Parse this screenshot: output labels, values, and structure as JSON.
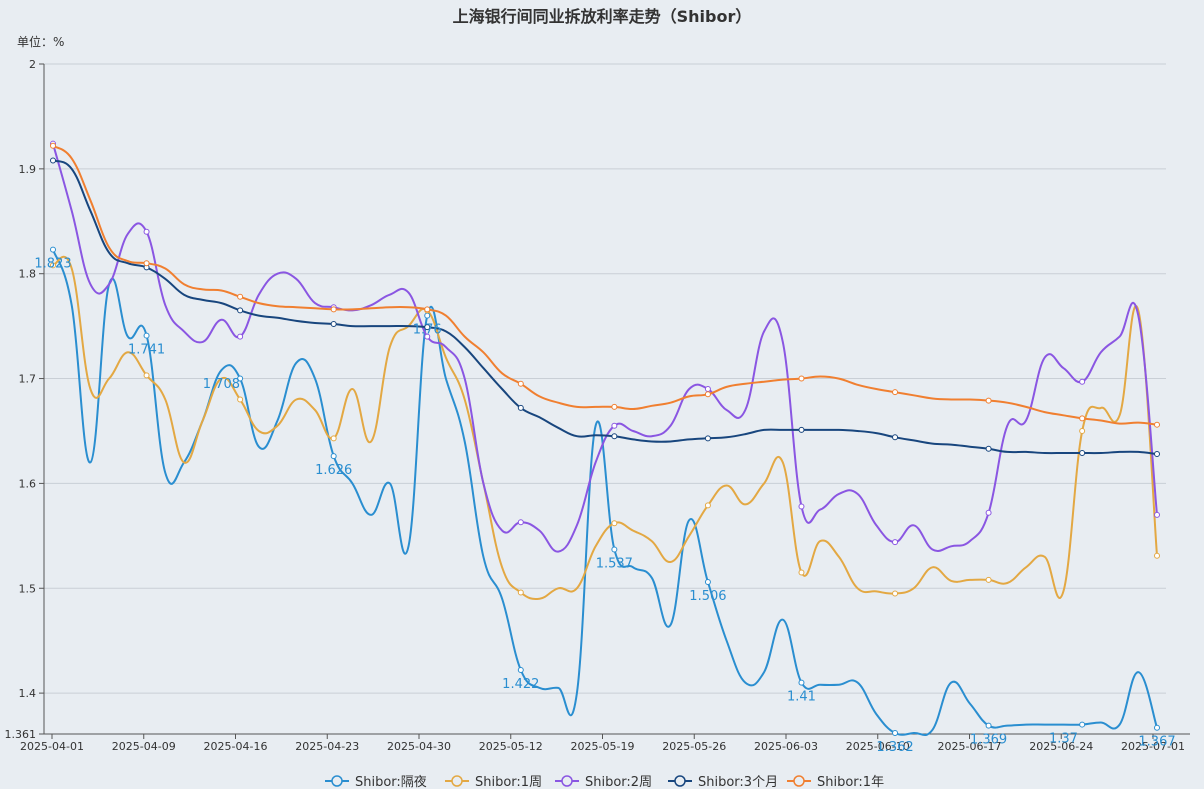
{
  "chart_data": {
    "type": "line",
    "title": "上海银行间同业拆放利率走势（Shibor）",
    "unit_label": "单位：%",
    "ylim": [
      1.361,
      2
    ],
    "yticks": [
      "1.361",
      "1.4",
      "1.5",
      "1.6",
      "1.7",
      "1.8",
      "1.9",
      "2"
    ],
    "xticks": [
      "2025-04-01",
      "2025-04-09",
      "2025-04-16",
      "2025-04-23",
      "2025-04-30",
      "2025-05-12",
      "2025-05-19",
      "2025-05-26",
      "2025-06-03",
      "2025-06-10",
      "2025-06-17",
      "2025-06-24",
      "2025-07-01"
    ],
    "grid": true,
    "legend_position": "bottom",
    "series": [
      {
        "name": "Shibor:隔夜",
        "color": "#2a8ed0",
        "values": [
          1.823,
          1.77,
          1.62,
          1.79,
          1.74,
          1.741,
          1.61,
          1.62,
          1.66,
          1.708,
          1.7,
          1.635,
          1.66,
          1.715,
          1.7,
          1.626,
          1.6,
          1.57,
          1.6,
          1.54,
          1.76,
          1.7,
          1.64,
          1.53,
          1.49,
          1.422,
          1.405,
          1.405,
          1.4,
          1.655,
          1.537,
          1.52,
          1.51,
          1.465,
          1.565,
          1.506,
          1.45,
          1.41,
          1.42,
          1.47,
          1.41,
          1.408,
          1.408,
          1.41,
          1.38,
          1.362,
          1.362,
          1.365,
          1.41,
          1.39,
          1.369,
          1.369,
          1.37,
          1.37,
          1.37,
          1.37,
          1.372,
          1.37,
          1.42,
          1.367
        ],
        "labels": [
          [
            0,
            "1.823"
          ],
          [
            5,
            "1.741"
          ],
          [
            9,
            "1.708"
          ],
          [
            15,
            "1.626"
          ],
          [
            20,
            "1.76"
          ],
          [
            25,
            "1.422"
          ],
          [
            30,
            "1.537"
          ],
          [
            35,
            "1.506"
          ],
          [
            40,
            "1.41"
          ],
          [
            45,
            "1.362"
          ],
          [
            50,
            "1.369"
          ],
          [
            54,
            "1.37"
          ],
          [
            59,
            "1.367"
          ]
        ]
      },
      {
        "name": "Shibor:1周",
        "color": "#e3a843",
        "values": [
          1.808,
          1.805,
          1.69,
          1.7,
          1.725,
          1.703,
          1.68,
          1.62,
          1.66,
          1.7,
          1.68,
          1.65,
          1.655,
          1.68,
          1.67,
          1.643,
          1.69,
          1.64,
          1.73,
          1.75,
          1.765,
          1.72,
          1.68,
          1.6,
          1.52,
          1.496,
          1.49,
          1.5,
          1.5,
          1.54,
          1.562,
          1.555,
          1.545,
          1.525,
          1.55,
          1.579,
          1.598,
          1.58,
          1.6,
          1.62,
          1.515,
          1.545,
          1.53,
          1.5,
          1.497,
          1.495,
          1.5,
          1.52,
          1.507,
          1.508,
          1.508,
          1.505,
          1.52,
          1.53,
          1.497,
          1.65,
          1.672,
          1.665,
          1.765,
          1.531
        ],
        "labels": []
      },
      {
        "name": "Shibor:2周",
        "color": "#8a56e2",
        "values": [
          1.924,
          1.86,
          1.79,
          1.79,
          1.838,
          1.84,
          1.77,
          1.745,
          1.735,
          1.756,
          1.74,
          1.78,
          1.8,
          1.795,
          1.772,
          1.768,
          1.765,
          1.77,
          1.78,
          1.782,
          1.74,
          1.73,
          1.7,
          1.6,
          1.555,
          1.563,
          1.555,
          1.535,
          1.56,
          1.62,
          1.655,
          1.65,
          1.645,
          1.655,
          1.69,
          1.69,
          1.67,
          1.67,
          1.745,
          1.735,
          1.578,
          1.575,
          1.59,
          1.59,
          1.56,
          1.544,
          1.56,
          1.537,
          1.54,
          1.545,
          1.572,
          1.655,
          1.66,
          1.72,
          1.71,
          1.697,
          1.725,
          1.74,
          1.76,
          1.57
        ],
        "labels": []
      },
      {
        "name": "Shibor:3个月",
        "color": "#18467e",
        "values": [
          1.908,
          1.9,
          1.86,
          1.82,
          1.81,
          1.806,
          1.795,
          1.78,
          1.775,
          1.772,
          1.765,
          1.76,
          1.758,
          1.755,
          1.753,
          1.752,
          1.75,
          1.75,
          1.75,
          1.75,
          1.749,
          1.745,
          1.73,
          1.71,
          1.69,
          1.672,
          1.663,
          1.653,
          1.645,
          1.646,
          1.645,
          1.642,
          1.64,
          1.64,
          1.642,
          1.643,
          1.644,
          1.647,
          1.651,
          1.651,
          1.651,
          1.651,
          1.651,
          1.65,
          1.648,
          1.644,
          1.641,
          1.638,
          1.637,
          1.635,
          1.633,
          1.63,
          1.63,
          1.629,
          1.629,
          1.629,
          1.629,
          1.63,
          1.63,
          1.628
        ],
        "labels": []
      },
      {
        "name": "Shibor:1年",
        "color": "#f07f30",
        "values": [
          1.922,
          1.91,
          1.87,
          1.825,
          1.812,
          1.81,
          1.805,
          1.79,
          1.785,
          1.784,
          1.778,
          1.772,
          1.769,
          1.768,
          1.767,
          1.766,
          1.766,
          1.767,
          1.768,
          1.768,
          1.766,
          1.76,
          1.74,
          1.725,
          1.705,
          1.695,
          1.683,
          1.677,
          1.673,
          1.673,
          1.673,
          1.671,
          1.674,
          1.677,
          1.683,
          1.685,
          1.692,
          1.695,
          1.697,
          1.699,
          1.7,
          1.702,
          1.7,
          1.694,
          1.69,
          1.687,
          1.684,
          1.681,
          1.68,
          1.68,
          1.679,
          1.677,
          1.673,
          1.668,
          1.665,
          1.662,
          1.66,
          1.657,
          1.658,
          1.656
        ],
        "labels": []
      }
    ]
  }
}
